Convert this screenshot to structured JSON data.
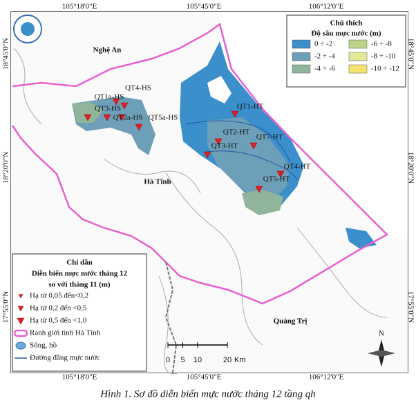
{
  "coordinates": {
    "top": [
      "105°18'0\"E",
      "105°45'0\"E",
      "106°12'0\"E"
    ],
    "bottom": [
      "105°18'0\"E",
      "105°45'0\"E",
      "106°12'0\"E"
    ],
    "left": [
      "18°45'0\"N",
      "18°20'0\"N",
      "17°55'0\"N"
    ],
    "right": [
      "18°45'0\"N",
      "18°20'0\"N",
      "17°55'0\"N"
    ]
  },
  "places": [
    "Nghệ An",
    "Hà Tĩnh",
    "Quảng Trị"
  ],
  "wells": [
    "QT4-HS",
    "QT1a-HS",
    "QT3-HS",
    "QT2a-HS",
    "QT5a-HS",
    "QT1-HT",
    "QT2-HT",
    "QT7-HT",
    "QT3-HT",
    "QT4-HT",
    "QT5-HT"
  ],
  "legend": {
    "title": "Chú thích",
    "subtitle": "Độ sâu mực nước (m)",
    "items": [
      {
        "label": "0 ÷ -2",
        "color": "#3b8fcb"
      },
      {
        "label": "-2 ÷ -4",
        "color": "#6e9fb8"
      },
      {
        "label": "-4 ÷ -6",
        "color": "#90b59a"
      },
      {
        "label": "-6 ÷ -8",
        "color": "#bcd48a"
      },
      {
        "label": "-8 ÷ -10",
        "color": "#e2ea98"
      },
      {
        "label": "-10 ÷ -12",
        "color": "#f3e36a"
      }
    ]
  },
  "guide": {
    "title": "Chỉ dẫn",
    "subtitle": [
      "Diễn biến mực nước tháng 12",
      "so với tháng 11 (m)"
    ],
    "items": [
      "Hạ từ 0,05 đến<0,2",
      "Hạ từ 0,2 đến <0,5",
      "Hạ từ 0,5 đến <1,0",
      "Ranh giới tỉnh Hà Tĩnh",
      "Sông, hồ",
      "Đường đẳng mực nước"
    ]
  },
  "scale": {
    "ticks": [
      0,
      5,
      10,
      20
    ],
    "unit": "Km"
  },
  "north": "N",
  "caption": "Hình 1. Sơ đồ diễn biến mực nước tháng 12 tầng qh"
}
